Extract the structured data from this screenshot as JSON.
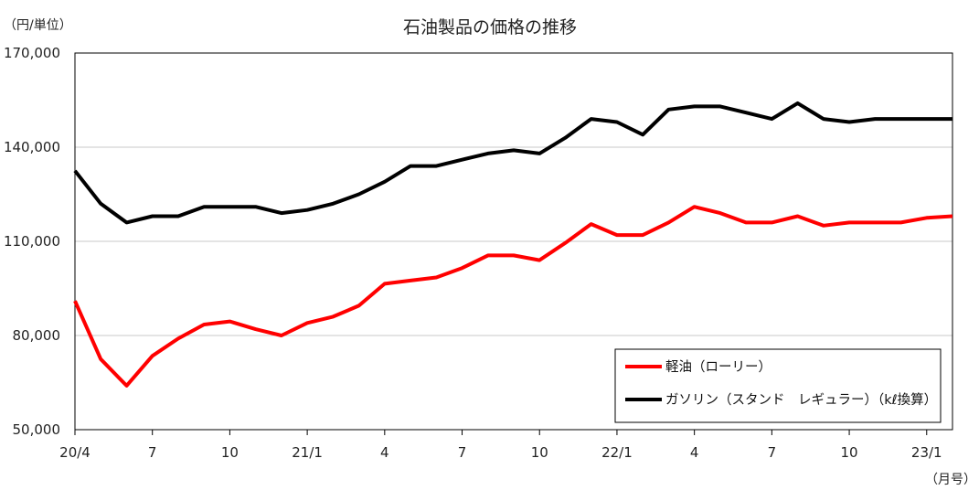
{
  "chart_data": {
    "type": "line",
    "title": "石油製品の価格の推移",
    "y_unit_label": "（円/単位）",
    "x_unit_label": "（月号）",
    "x_tick_labels": [
      "20/4",
      "7",
      "10",
      "21/1",
      "4",
      "7",
      "10",
      "22/1",
      "4",
      "7",
      "10",
      "23/1"
    ],
    "y_tick_labels": [
      "50,000",
      "80,000",
      "110,000",
      "140,000",
      "170,000"
    ],
    "ylim": [
      50000,
      170000
    ],
    "y_ticks": [
      50000,
      80000,
      110000,
      140000,
      170000
    ],
    "grid": true,
    "legend_position": "bottom-right",
    "series": [
      {
        "name": "軽油（ローリー）",
        "color": "#ff0000",
        "values": [
          91000,
          72500,
          64000,
          73500,
          79000,
          83500,
          84500,
          82000,
          80000,
          84000,
          86000,
          89500,
          96500,
          97500,
          98500,
          101500,
          105500,
          105500,
          104000,
          109500,
          115500,
          112000,
          112000,
          116000,
          121000,
          119000,
          116000,
          116000,
          118000,
          115000,
          116000,
          116000,
          116000,
          117500,
          118000
        ]
      },
      {
        "name": "ガソリン（スタンド　レギュラー）（kℓ換算）",
        "color": "#000000",
        "values": [
          132500,
          122000,
          116000,
          118000,
          118000,
          121000,
          121000,
          121000,
          119000,
          120000,
          122000,
          125000,
          129000,
          134000,
          134000,
          136000,
          138000,
          139000,
          138000,
          143000,
          149000,
          148000,
          144000,
          152000,
          153000,
          153000,
          151000,
          149000,
          154000,
          149000,
          148000,
          149000,
          149000,
          149000,
          149000
        ]
      }
    ]
  }
}
